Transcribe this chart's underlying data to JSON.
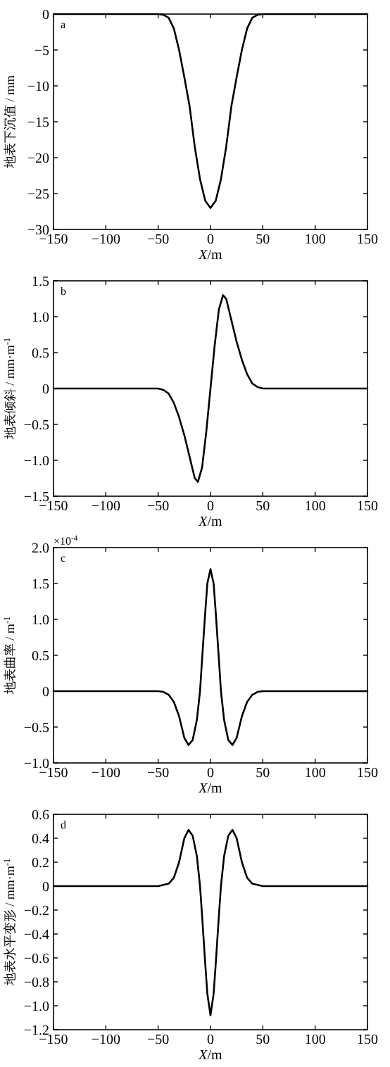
{
  "chart_data": [
    {
      "type": "line",
      "xlabel": "*X*/m",
      "ylabel": "地表下沉值 / mm",
      "annotations": [
        "a"
      ],
      "xlim": [
        -150,
        150
      ],
      "xticks": [
        -150,
        -100,
        -50,
        0,
        50,
        100,
        150
      ],
      "ylim": [
        -30,
        0
      ],
      "yticks": [
        -30,
        -25,
        -20,
        -15,
        -10,
        -5,
        0
      ],
      "x": [
        -150,
        -100,
        -50,
        -45,
        -40,
        -35,
        -30,
        -25,
        -20,
        -15,
        -10,
        -5,
        0,
        5,
        10,
        15,
        20,
        25,
        30,
        35,
        40,
        45,
        50,
        100,
        150
      ],
      "series": [
        {
          "color": "#000000",
          "values": [
            0,
            0,
            0,
            -0.1,
            -0.5,
            -2,
            -5,
            -8.8,
            -12.8,
            -18.5,
            -23,
            -26,
            -27,
            -26,
            -23,
            -18.5,
            -12.8,
            -8.8,
            -5,
            -2,
            -0.5,
            -0.1,
            0,
            0,
            0
          ]
        }
      ]
    },
    {
      "type": "line",
      "xlabel": "*X*/m",
      "ylabel": "地表倾斜 / mm·m$^{-1}$",
      "annotations": [
        "b"
      ],
      "xlim": [
        -150,
        150
      ],
      "xticks": [
        -150,
        -100,
        -50,
        0,
        50,
        100,
        150
      ],
      "ylim": [
        -1.5,
        1.5
      ],
      "yticks": [
        -1.5,
        {
          "value": -1,
          "label": "−1.0"
        },
        -0.5,
        0,
        0.5,
        {
          "value": 1,
          "label": "1.0"
        },
        1.5
      ],
      "x": [
        -150,
        -100,
        -50,
        -45,
        -40,
        -35,
        -30,
        -25,
        -20,
        -15,
        -12,
        -8,
        -4,
        0,
        4,
        8,
        12,
        15,
        20,
        25,
        30,
        35,
        40,
        45,
        50,
        100,
        150
      ],
      "series": [
        {
          "color": "#000000",
          "values": [
            0,
            0,
            0,
            -0.02,
            -0.07,
            -0.2,
            -0.4,
            -0.65,
            -0.95,
            -1.25,
            -1.3,
            -1.1,
            -0.6,
            0,
            0.6,
            1.1,
            1.3,
            1.25,
            0.95,
            0.65,
            0.4,
            0.2,
            0.07,
            0.02,
            0,
            0,
            0
          ]
        }
      ]
    },
    {
      "type": "line",
      "xlabel": "*X*/m",
      "ylabel": "地表曲率 / m$^{-1}$",
      "annotations": [
        "c",
        "×10$^{-4}$"
      ],
      "xlim": [
        -150,
        150
      ],
      "xticks": [
        -150,
        -100,
        -50,
        0,
        50,
        100,
        150
      ],
      "ylim": [
        -1.0,
        2.0
      ],
      "yticks": [
        {
          "value": -1,
          "label": "−1.0"
        },
        -0.5,
        0,
        0.5,
        {
          "value": 1,
          "label": "1.0"
        },
        1.5,
        {
          "value": 2,
          "label": "2.0"
        }
      ],
      "x": [
        -150,
        -100,
        -50,
        -45,
        -40,
        -35,
        -30,
        -25,
        -21,
        -17,
        -13,
        -10,
        -8,
        -5,
        -3,
        0,
        3,
        5,
        8,
        10,
        13,
        17,
        21,
        25,
        30,
        35,
        40,
        45,
        50,
        100,
        150
      ],
      "series": [
        {
          "color": "#000000",
          "values": [
            0,
            0,
            0,
            -0.01,
            -0.05,
            -0.15,
            -0.35,
            -0.65,
            -0.75,
            -0.68,
            -0.4,
            0,
            0.45,
            1.1,
            1.5,
            1.7,
            1.5,
            1.1,
            0.45,
            0,
            -0.4,
            -0.68,
            -0.75,
            -0.65,
            -0.35,
            -0.15,
            -0.05,
            -0.01,
            0,
            0,
            0
          ]
        }
      ]
    },
    {
      "type": "line",
      "xlabel": "*X*/m",
      "ylabel": "地表水平变形 / mm·m$^{-1}$",
      "annotations": [
        "d"
      ],
      "xlim": [
        -150,
        150
      ],
      "xticks": [
        -150,
        -100,
        -50,
        0,
        50,
        100,
        150
      ],
      "ylim": [
        -1.2,
        0.6
      ],
      "yticks": [
        -1.2,
        {
          "value": -1,
          "label": "−1.0"
        },
        -0.8,
        -0.6,
        -0.4,
        -0.2,
        0,
        0.2,
        0.4,
        0.6
      ],
      "x": [
        -150,
        -100,
        -50,
        -45,
        -40,
        -35,
        -30,
        -25,
        -21,
        -17,
        -13,
        -10,
        -8,
        -5,
        -3,
        0,
        3,
        5,
        8,
        10,
        13,
        17,
        21,
        25,
        30,
        35,
        40,
        45,
        50,
        100,
        150
      ],
      "series": [
        {
          "color": "#000000",
          "values": [
            0,
            0,
            0,
            0.01,
            0.02,
            0.07,
            0.2,
            0.4,
            0.47,
            0.42,
            0.25,
            0,
            -0.25,
            -0.65,
            -0.9,
            -1.08,
            -0.9,
            -0.65,
            -0.25,
            0,
            0.25,
            0.42,
            0.47,
            0.4,
            0.2,
            0.07,
            0.02,
            0.01,
            0,
            0,
            0
          ]
        }
      ]
    }
  ]
}
